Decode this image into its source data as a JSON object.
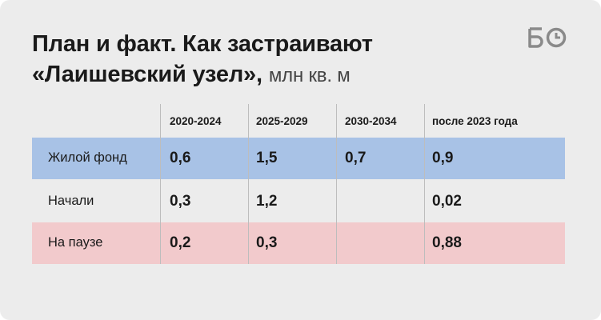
{
  "title": {
    "line1": "План и факт. Как застраивают",
    "line2": "«Лаишевский узел»,",
    "units": "млн кв. м"
  },
  "logo": {
    "text": "БО",
    "icon": "bo-logo-icon"
  },
  "table": {
    "columns": [
      "2020-2024",
      "2025-2029",
      "2030-2034",
      "после 2023 года"
    ],
    "rows": [
      {
        "label": "Жилой фонд",
        "values": [
          "0,6",
          "1,5",
          "0,7",
          "0,9"
        ],
        "color": "#a8c2e6"
      },
      {
        "label": "Начали",
        "values": [
          "0,3",
          "1,2",
          "",
          "0,02"
        ],
        "color": "#ececec"
      },
      {
        "label": "На паузе",
        "values": [
          "0,2",
          "0,3",
          "",
          "0,88"
        ],
        "color": "#f2cacc"
      }
    ]
  },
  "colors": {
    "background": "#ececec",
    "row_blue": "#a8c2e6",
    "row_pink": "#f2cacc",
    "text": "#1a1a1a"
  }
}
